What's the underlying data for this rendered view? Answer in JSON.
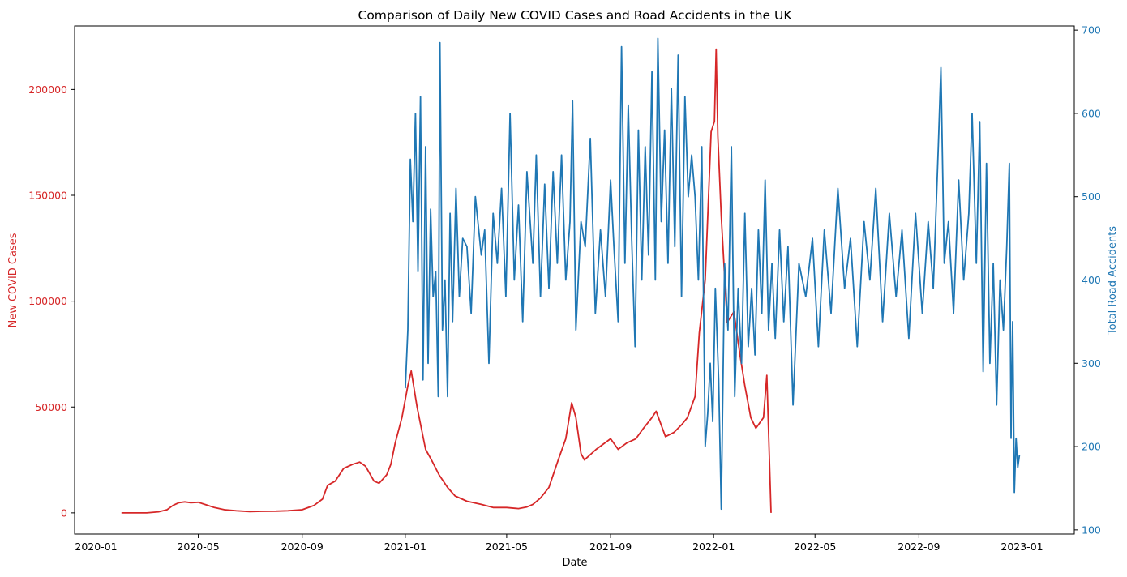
{
  "chart_data": {
    "type": "line",
    "title": "Comparison of Daily New COVID Cases and Road Accidents in the UK",
    "xlabel": "Date",
    "x_ticks": [
      "2020-01",
      "2020-05",
      "2020-09",
      "2021-01",
      "2021-05",
      "2021-09",
      "2022-01",
      "2022-05",
      "2022-09",
      "2023-01"
    ],
    "x_range": [
      "2020-01-01",
      "2023-01-01"
    ],
    "colors": {
      "covid": "#d62728",
      "accidents": "#1f77b4"
    },
    "left_axis": {
      "label": "New COVID Cases",
      "ylim": [
        -10000,
        230000
      ],
      "ticks": [
        "0",
        "50000",
        "100000",
        "150000",
        "200000"
      ]
    },
    "right_axis": {
      "label": "Total Road Accidents",
      "ylim": [
        95,
        705
      ],
      "ticks": [
        "100",
        "200",
        "300",
        "400",
        "500",
        "600",
        "700"
      ]
    },
    "series": [
      {
        "name": "New COVID Cases",
        "axis": "left",
        "points": [
          [
            "2020-01-31",
            0
          ],
          [
            "2020-02-15",
            0
          ],
          [
            "2020-03-01",
            0
          ],
          [
            "2020-03-15",
            500
          ],
          [
            "2020-03-25",
            1500
          ],
          [
            "2020-04-01",
            3500
          ],
          [
            "2020-04-08",
            4800
          ],
          [
            "2020-04-15",
            5200
          ],
          [
            "2020-04-22",
            4800
          ],
          [
            "2020-05-01",
            5000
          ],
          [
            "2020-05-10",
            3800
          ],
          [
            "2020-05-20",
            2500
          ],
          [
            "2020-06-01",
            1500
          ],
          [
            "2020-06-15",
            1000
          ],
          [
            "2020-07-01",
            600
          ],
          [
            "2020-07-15",
            700
          ],
          [
            "2020-08-01",
            800
          ],
          [
            "2020-08-15",
            1000
          ],
          [
            "2020-09-01",
            1500
          ],
          [
            "2020-09-15",
            3500
          ],
          [
            "2020-09-25",
            6500
          ],
          [
            "2020-10-01",
            13000
          ],
          [
            "2020-10-10",
            15000
          ],
          [
            "2020-10-20",
            21000
          ],
          [
            "2020-10-31",
            23000
          ],
          [
            "2020-11-08",
            24000
          ],
          [
            "2020-11-15",
            22000
          ],
          [
            "2020-11-25",
            15000
          ],
          [
            "2020-12-01",
            14000
          ],
          [
            "2020-12-10",
            18000
          ],
          [
            "2020-12-15",
            23000
          ],
          [
            "2020-12-20",
            33000
          ],
          [
            "2020-12-28",
            45000
          ],
          [
            "2021-01-04",
            60000
          ],
          [
            "2021-01-08",
            67000
          ],
          [
            "2021-01-15",
            50000
          ],
          [
            "2021-01-25",
            30000
          ],
          [
            "2021-02-01",
            25000
          ],
          [
            "2021-02-10",
            18000
          ],
          [
            "2021-02-20",
            12000
          ],
          [
            "2021-03-01",
            8000
          ],
          [
            "2021-03-15",
            5500
          ],
          [
            "2021-04-01",
            4000
          ],
          [
            "2021-04-15",
            2500
          ],
          [
            "2021-05-01",
            2500
          ],
          [
            "2021-05-15",
            2000
          ],
          [
            "2021-05-25",
            2800
          ],
          [
            "2021-06-01",
            4000
          ],
          [
            "2021-06-10",
            7000
          ],
          [
            "2021-06-20",
            12000
          ],
          [
            "2021-07-01",
            25000
          ],
          [
            "2021-07-10",
            35000
          ],
          [
            "2021-07-17",
            52000
          ],
          [
            "2021-07-22",
            45000
          ],
          [
            "2021-07-28",
            28000
          ],
          [
            "2021-08-01",
            25000
          ],
          [
            "2021-08-15",
            30000
          ],
          [
            "2021-09-01",
            35000
          ],
          [
            "2021-09-10",
            30000
          ],
          [
            "2021-09-20",
            33000
          ],
          [
            "2021-10-01",
            35000
          ],
          [
            "2021-10-10",
            40000
          ],
          [
            "2021-10-20",
            45000
          ],
          [
            "2021-10-25",
            48000
          ],
          [
            "2021-11-05",
            36000
          ],
          [
            "2021-11-15",
            38000
          ],
          [
            "2021-11-25",
            42000
          ],
          [
            "2021-12-01",
            45000
          ],
          [
            "2021-12-10",
            55000
          ],
          [
            "2021-12-15",
            85000
          ],
          [
            "2021-12-22",
            110000
          ],
          [
            "2021-12-29",
            180000
          ],
          [
            "2022-01-02",
            185000
          ],
          [
            "2022-01-04",
            219000
          ],
          [
            "2022-01-06",
            178000
          ],
          [
            "2022-01-10",
            140000
          ],
          [
            "2022-01-17",
            90000
          ],
          [
            "2022-01-25",
            95000
          ],
          [
            "2022-02-01",
            75000
          ],
          [
            "2022-02-07",
            60000
          ],
          [
            "2022-02-14",
            45000
          ],
          [
            "2022-02-20",
            40000
          ],
          [
            "2022-03-01",
            45000
          ],
          [
            "2022-03-05",
            65000
          ],
          [
            "2022-03-10",
            0
          ]
        ]
      },
      {
        "name": "Total Road Accidents",
        "axis": "right",
        "points": [
          [
            "2021-01-01",
            270
          ],
          [
            "2021-01-04",
            340
          ],
          [
            "2021-01-07",
            545
          ],
          [
            "2021-01-10",
            470
          ],
          [
            "2021-01-13",
            600
          ],
          [
            "2021-01-16",
            410
          ],
          [
            "2021-01-19",
            620
          ],
          [
            "2021-01-22",
            280
          ],
          [
            "2021-01-25",
            560
          ],
          [
            "2021-01-28",
            300
          ],
          [
            "2021-01-31",
            485
          ],
          [
            "2021-02-03",
            380
          ],
          [
            "2021-02-06",
            410
          ],
          [
            "2021-02-09",
            260
          ],
          [
            "2021-02-11",
            685
          ],
          [
            "2021-02-14",
            340
          ],
          [
            "2021-02-17",
            400
          ],
          [
            "2021-02-20",
            260
          ],
          [
            "2021-02-23",
            480
          ],
          [
            "2021-02-26",
            350
          ],
          [
            "2021-03-02",
            510
          ],
          [
            "2021-03-06",
            380
          ],
          [
            "2021-03-10",
            450
          ],
          [
            "2021-03-15",
            440
          ],
          [
            "2021-03-20",
            360
          ],
          [
            "2021-03-25",
            500
          ],
          [
            "2021-04-01",
            430
          ],
          [
            "2021-04-05",
            460
          ],
          [
            "2021-04-10",
            300
          ],
          [
            "2021-04-15",
            480
          ],
          [
            "2021-04-20",
            420
          ],
          [
            "2021-04-25",
            510
          ],
          [
            "2021-04-30",
            380
          ],
          [
            "2021-05-05",
            600
          ],
          [
            "2021-05-10",
            400
          ],
          [
            "2021-05-15",
            490
          ],
          [
            "2021-05-20",
            350
          ],
          [
            "2021-05-25",
            530
          ],
          [
            "2021-06-01",
            420
          ],
          [
            "2021-06-05",
            550
          ],
          [
            "2021-06-10",
            380
          ],
          [
            "2021-06-15",
            515
          ],
          [
            "2021-06-20",
            390
          ],
          [
            "2021-06-25",
            530
          ],
          [
            "2021-06-30",
            420
          ],
          [
            "2021-07-05",
            550
          ],
          [
            "2021-07-10",
            400
          ],
          [
            "2021-07-15",
            470
          ],
          [
            "2021-07-18",
            615
          ],
          [
            "2021-07-22",
            340
          ],
          [
            "2021-07-28",
            470
          ],
          [
            "2021-08-02",
            440
          ],
          [
            "2021-08-08",
            570
          ],
          [
            "2021-08-14",
            360
          ],
          [
            "2021-08-20",
            460
          ],
          [
            "2021-08-26",
            380
          ],
          [
            "2021-09-01",
            520
          ],
          [
            "2021-09-05",
            440
          ],
          [
            "2021-09-10",
            350
          ],
          [
            "2021-09-14",
            680
          ],
          [
            "2021-09-18",
            420
          ],
          [
            "2021-09-22",
            610
          ],
          [
            "2021-09-26",
            450
          ],
          [
            "2021-09-30",
            320
          ],
          [
            "2021-10-04",
            580
          ],
          [
            "2021-10-08",
            400
          ],
          [
            "2021-10-12",
            560
          ],
          [
            "2021-10-16",
            430
          ],
          [
            "2021-10-20",
            650
          ],
          [
            "2021-10-24",
            400
          ],
          [
            "2021-10-27",
            690
          ],
          [
            "2021-10-31",
            470
          ],
          [
            "2021-11-04",
            580
          ],
          [
            "2021-11-08",
            420
          ],
          [
            "2021-11-12",
            630
          ],
          [
            "2021-11-16",
            440
          ],
          [
            "2021-11-20",
            670
          ],
          [
            "2021-11-24",
            380
          ],
          [
            "2021-11-28",
            620
          ],
          [
            "2021-12-02",
            500
          ],
          [
            "2021-12-06",
            550
          ],
          [
            "2021-12-10",
            500
          ],
          [
            "2021-12-14",
            400
          ],
          [
            "2021-12-18",
            560
          ],
          [
            "2021-12-22",
            200
          ],
          [
            "2021-12-25",
            240
          ],
          [
            "2021-12-28",
            300
          ],
          [
            "2021-12-31",
            230
          ],
          [
            "2022-01-03",
            390
          ],
          [
            "2022-01-07",
            280
          ],
          [
            "2022-01-10",
            125
          ],
          [
            "2022-01-14",
            420
          ],
          [
            "2022-01-18",
            340
          ],
          [
            "2022-01-22",
            560
          ],
          [
            "2022-01-26",
            260
          ],
          [
            "2022-01-30",
            390
          ],
          [
            "2022-02-03",
            300
          ],
          [
            "2022-02-07",
            480
          ],
          [
            "2022-02-11",
            320
          ],
          [
            "2022-02-15",
            390
          ],
          [
            "2022-02-19",
            310
          ],
          [
            "2022-02-23",
            460
          ],
          [
            "2022-02-27",
            360
          ],
          [
            "2022-03-03",
            520
          ],
          [
            "2022-03-07",
            340
          ],
          [
            "2022-03-11",
            420
          ],
          [
            "2022-03-15",
            330
          ],
          [
            "2022-03-20",
            460
          ],
          [
            "2022-03-25",
            350
          ],
          [
            "2022-03-30",
            440
          ],
          [
            "2022-04-05",
            250
          ],
          [
            "2022-04-12",
            420
          ],
          [
            "2022-04-20",
            380
          ],
          [
            "2022-04-28",
            450
          ],
          [
            "2022-05-05",
            320
          ],
          [
            "2022-05-12",
            460
          ],
          [
            "2022-05-20",
            360
          ],
          [
            "2022-05-28",
            510
          ],
          [
            "2022-06-05",
            390
          ],
          [
            "2022-06-12",
            450
          ],
          [
            "2022-06-20",
            320
          ],
          [
            "2022-06-28",
            470
          ],
          [
            "2022-07-05",
            400
          ],
          [
            "2022-07-12",
            510
          ],
          [
            "2022-07-20",
            350
          ],
          [
            "2022-07-28",
            480
          ],
          [
            "2022-08-05",
            380
          ],
          [
            "2022-08-12",
            460
          ],
          [
            "2022-08-20",
            330
          ],
          [
            "2022-08-28",
            480
          ],
          [
            "2022-09-05",
            360
          ],
          [
            "2022-09-12",
            470
          ],
          [
            "2022-09-18",
            390
          ],
          [
            "2022-09-24",
            560
          ],
          [
            "2022-09-27",
            655
          ],
          [
            "2022-10-01",
            420
          ],
          [
            "2022-10-06",
            470
          ],
          [
            "2022-10-12",
            360
          ],
          [
            "2022-10-18",
            520
          ],
          [
            "2022-10-24",
            400
          ],
          [
            "2022-10-30",
            480
          ],
          [
            "2022-11-03",
            600
          ],
          [
            "2022-11-08",
            420
          ],
          [
            "2022-11-12",
            590
          ],
          [
            "2022-11-16",
            290
          ],
          [
            "2022-11-20",
            540
          ],
          [
            "2022-11-24",
            300
          ],
          [
            "2022-11-28",
            420
          ],
          [
            "2022-12-02",
            250
          ],
          [
            "2022-12-06",
            400
          ],
          [
            "2022-12-10",
            340
          ],
          [
            "2022-12-14",
            440
          ],
          [
            "2022-12-17",
            540
          ],
          [
            "2022-12-19",
            210
          ],
          [
            "2022-12-21",
            350
          ],
          [
            "2022-12-23",
            145
          ],
          [
            "2022-12-25",
            210
          ],
          [
            "2022-12-27",
            175
          ],
          [
            "2022-12-29",
            190
          ]
        ]
      }
    ]
  }
}
